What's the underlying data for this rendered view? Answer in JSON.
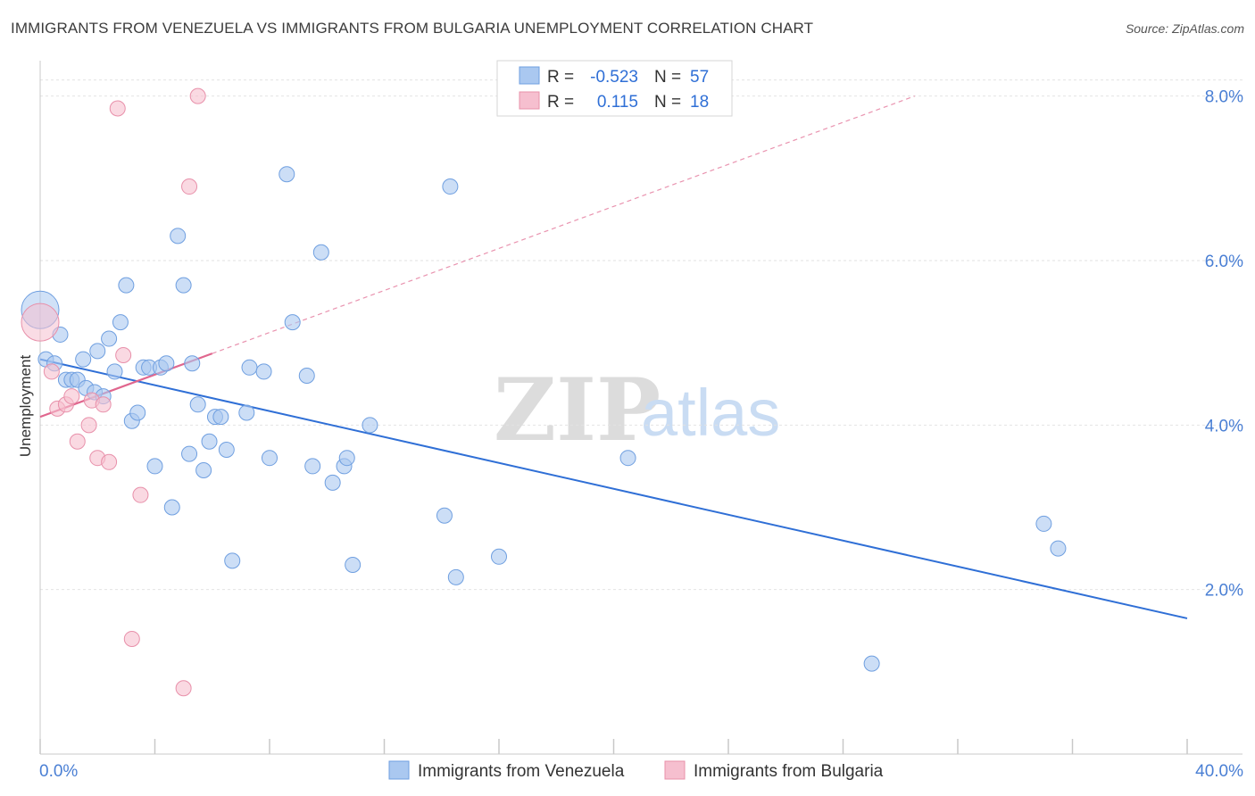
{
  "title": "IMMIGRANTS FROM VENEZUELA VS IMMIGRANTS FROM BULGARIA UNEMPLOYMENT CORRELATION CHART",
  "source": "Source: ZipAtlas.com",
  "watermark": {
    "zip": "ZIP",
    "atlas": "atlas"
  },
  "colors": {
    "venezuela_fill": "#aac8f0",
    "venezuela_stroke": "#6f9fe0",
    "venezuela_line": "#2f6fd6",
    "bulgaria_fill": "#f6bfcf",
    "bulgaria_stroke": "#e890aa",
    "bulgaria_line": "#e0668e",
    "grid": "#e2e2e2",
    "tick_label": "#4a7fd4"
  },
  "legend": {
    "rows": [
      {
        "r_label": "R =",
        "r_value": "-0.523",
        "n_label": "N =",
        "n_value": "57",
        "series": "venezuela"
      },
      {
        "r_label": "R =",
        "r_value": "0.115",
        "n_label": "N =",
        "n_value": "18",
        "series": "bulgaria"
      }
    ]
  },
  "chart_data": {
    "type": "scatter",
    "title": "IMMIGRANTS FROM VENEZUELA VS IMMIGRANTS FROM BULGARIA UNEMPLOYMENT CORRELATION CHART",
    "xlabel": "",
    "ylabel": "Unemployment",
    "xlim": [
      0,
      40
    ],
    "ylim": [
      0,
      8.3
    ],
    "x_tick_labels": [
      "0.0%",
      "40.0%"
    ],
    "y_ticks": [
      2,
      4,
      6,
      8
    ],
    "y_tick_labels": [
      "2.0%",
      "4.0%",
      "6.0%",
      "8.0%"
    ],
    "grid": true,
    "legend_position": "bottom",
    "series": [
      {
        "name": "Immigrants from Venezuela",
        "key": "venezuela",
        "trend": {
          "x0": 0.0,
          "y0": 4.8,
          "x1": 40.0,
          "y1": 1.65
        },
        "points": [
          {
            "x": 0.0,
            "y": 5.4,
            "big": true
          },
          {
            "x": 0.2,
            "y": 4.8
          },
          {
            "x": 0.5,
            "y": 4.75
          },
          {
            "x": 0.7,
            "y": 5.1
          },
          {
            "x": 0.9,
            "y": 4.55
          },
          {
            "x": 1.1,
            "y": 4.55
          },
          {
            "x": 1.3,
            "y": 4.55
          },
          {
            "x": 1.5,
            "y": 4.8
          },
          {
            "x": 1.6,
            "y": 4.45
          },
          {
            "x": 1.9,
            "y": 4.4
          },
          {
            "x": 2.0,
            "y": 4.9
          },
          {
            "x": 2.2,
            "y": 4.35
          },
          {
            "x": 2.4,
            "y": 5.05
          },
          {
            "x": 2.6,
            "y": 4.65
          },
          {
            "x": 2.8,
            "y": 5.25
          },
          {
            "x": 3.0,
            "y": 5.7
          },
          {
            "x": 3.2,
            "y": 4.05
          },
          {
            "x": 3.4,
            "y": 4.15
          },
          {
            "x": 3.6,
            "y": 4.7
          },
          {
            "x": 3.8,
            "y": 4.7
          },
          {
            "x": 4.0,
            "y": 3.5
          },
          {
            "x": 4.2,
            "y": 4.7
          },
          {
            "x": 4.4,
            "y": 4.75
          },
          {
            "x": 4.6,
            "y": 3.0
          },
          {
            "x": 4.8,
            "y": 6.3
          },
          {
            "x": 5.0,
            "y": 5.7
          },
          {
            "x": 5.2,
            "y": 3.65
          },
          {
            "x": 5.3,
            "y": 4.75
          },
          {
            "x": 5.5,
            "y": 4.25
          },
          {
            "x": 5.7,
            "y": 3.45
          },
          {
            "x": 5.9,
            "y": 3.8
          },
          {
            "x": 6.1,
            "y": 4.1
          },
          {
            "x": 6.3,
            "y": 4.1
          },
          {
            "x": 6.5,
            "y": 3.7
          },
          {
            "x": 6.7,
            "y": 2.35
          },
          {
            "x": 7.2,
            "y": 4.15
          },
          {
            "x": 7.3,
            "y": 4.7
          },
          {
            "x": 7.8,
            "y": 4.65
          },
          {
            "x": 8.0,
            "y": 3.6
          },
          {
            "x": 8.6,
            "y": 7.05
          },
          {
            "x": 8.8,
            "y": 5.25
          },
          {
            "x": 9.3,
            "y": 4.6
          },
          {
            "x": 9.5,
            "y": 3.5
          },
          {
            "x": 9.8,
            "y": 6.1
          },
          {
            "x": 10.2,
            "y": 3.3
          },
          {
            "x": 10.6,
            "y": 3.5
          },
          {
            "x": 10.7,
            "y": 3.6
          },
          {
            "x": 10.9,
            "y": 2.3
          },
          {
            "x": 11.5,
            "y": 4.0
          },
          {
            "x": 14.1,
            "y": 2.9
          },
          {
            "x": 14.3,
            "y": 6.9
          },
          {
            "x": 14.5,
            "y": 2.15
          },
          {
            "x": 16.0,
            "y": 2.4
          },
          {
            "x": 20.5,
            "y": 3.6
          },
          {
            "x": 29.0,
            "y": 1.1
          },
          {
            "x": 35.0,
            "y": 2.8
          },
          {
            "x": 35.5,
            "y": 2.5
          }
        ]
      },
      {
        "name": "Immigrants from Bulgaria",
        "key": "bulgaria",
        "trend": {
          "x0": 0.0,
          "y0": 4.1,
          "x1": 6.0,
          "y1": 4.87
        },
        "trend_extension": {
          "x0": 6.0,
          "y0": 4.87,
          "x1": 30.5,
          "y1": 8.0
        },
        "points": [
          {
            "x": 0.0,
            "y": 5.25,
            "big": true
          },
          {
            "x": 0.4,
            "y": 4.65
          },
          {
            "x": 0.6,
            "y": 4.2
          },
          {
            "x": 0.9,
            "y": 4.25
          },
          {
            "x": 1.1,
            "y": 4.35
          },
          {
            "x": 1.3,
            "y": 3.8
          },
          {
            "x": 1.7,
            "y": 4.0
          },
          {
            "x": 1.8,
            "y": 4.3
          },
          {
            "x": 2.0,
            "y": 3.6
          },
          {
            "x": 2.2,
            "y": 4.25
          },
          {
            "x": 2.4,
            "y": 3.55
          },
          {
            "x": 2.7,
            "y": 7.85
          },
          {
            "x": 2.9,
            "y": 4.85
          },
          {
            "x": 3.2,
            "y": 1.4
          },
          {
            "x": 3.5,
            "y": 3.15
          },
          {
            "x": 5.0,
            "y": 0.8
          },
          {
            "x": 5.2,
            "y": 6.9
          },
          {
            "x": 5.5,
            "y": 8.0
          }
        ]
      }
    ]
  }
}
